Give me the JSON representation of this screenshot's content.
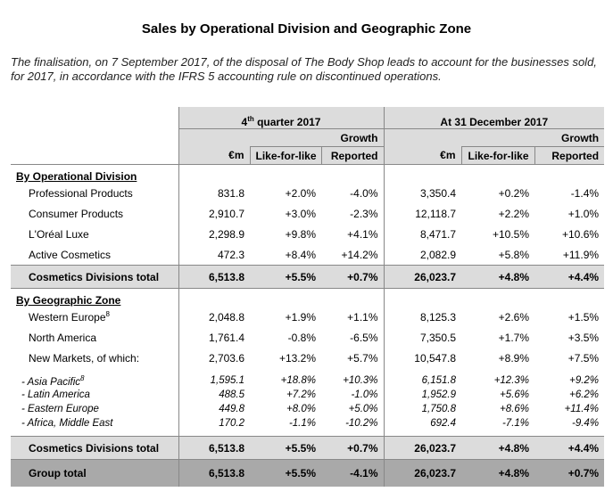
{
  "title": "Sales by Operational Division and Geographic Zone",
  "intro": "The finalisation, on 7 September 2017, of the disposal of The Body Shop leads to account for the businesses sold, for 2017, in accordance with the IFRS 5 accounting rule on discontinued operations.",
  "header": {
    "q4": "4th quarter 2017",
    "q4_base": "4",
    "q4_sup": "th",
    "q4_rest": " quarter 2017",
    "fy": "At 31 December 2017",
    "growth": "Growth",
    "em": "€m",
    "lfl": "Like-for-like",
    "reported": "Reported"
  },
  "divisions": {
    "heading": "By Operational Division",
    "rows": [
      {
        "label": "Professional Products",
        "q_em": "831.8",
        "q_lfl": "+2.0%",
        "q_rep": "-4.0%",
        "y_em": "3,350.4",
        "y_lfl": "+0.2%",
        "y_rep": "-1.4%"
      },
      {
        "label": "Consumer Products",
        "q_em": "2,910.7",
        "q_lfl": "+3.0%",
        "q_rep": "-2.3%",
        "y_em": "12,118.7",
        "y_lfl": "+2.2%",
        "y_rep": "+1.0%"
      },
      {
        "label": "L'Oréal Luxe",
        "q_em": "2,298.9",
        "q_lfl": "+9.8%",
        "q_rep": "+4.1%",
        "y_em": "8,471.7",
        "y_lfl": "+10.5%",
        "y_rep": "+10.6%"
      },
      {
        "label": "Active Cosmetics",
        "q_em": "472.3",
        "q_lfl": "+8.4%",
        "q_rep": "+14.2%",
        "y_em": "2,082.9",
        "y_lfl": "+5.8%",
        "y_rep": "+11.9%"
      }
    ],
    "total": {
      "label": "Cosmetics Divisions total",
      "q_em": "6,513.8",
      "q_lfl": "+5.5%",
      "q_rep": "+0.7%",
      "y_em": "26,023.7",
      "y_lfl": "+4.8%",
      "y_rep": "+4.4%"
    }
  },
  "zones": {
    "heading": "By Geographic Zone",
    "rows": [
      {
        "label": "Western Europe",
        "sup": "8",
        "q_em": "2,048.8",
        "q_lfl": "+1.9%",
        "q_rep": "+1.1%",
        "y_em": "8,125.3",
        "y_lfl": "+2.6%",
        "y_rep": "+1.5%"
      },
      {
        "label": "North America",
        "sup": "",
        "q_em": "1,761.4",
        "q_lfl": "-0.8%",
        "q_rep": "-6.5%",
        "y_em": "7,350.5",
        "y_lfl": "+1.7%",
        "y_rep": "+3.5%"
      },
      {
        "label": "New Markets, of which:",
        "sup": "",
        "q_em": "2,703.6",
        "q_lfl": "+13.2%",
        "q_rep": "+5.7%",
        "y_em": "10,547.8",
        "y_lfl": "+8.9%",
        "y_rep": "+7.5%"
      }
    ],
    "subrows": [
      {
        "label": "Asia Pacific",
        "sup": "8",
        "q_em": "1,595.1",
        "q_lfl": "+18.8%",
        "q_rep": "+10.3%",
        "y_em": "6,151.8",
        "y_lfl": "+12.3%",
        "y_rep": "+9.2%"
      },
      {
        "label": "Latin America",
        "sup": "",
        "q_em": "488.5",
        "q_lfl": "+7.2%",
        "q_rep": "-1.0%",
        "y_em": "1,952.9",
        "y_lfl": "+5.6%",
        "y_rep": "+6.2%"
      },
      {
        "label": "Eastern Europe",
        "sup": "",
        "q_em": "449.8",
        "q_lfl": "+8.0%",
        "q_rep": "+5.0%",
        "y_em": "1,750.8",
        "y_lfl": "+8.6%",
        "y_rep": "+11.4%"
      },
      {
        "label": "Africa, Middle East",
        "sup": "",
        "q_em": "170.2",
        "q_lfl": "-1.1%",
        "q_rep": "-10.2%",
        "y_em": "692.4",
        "y_lfl": "-7.1%",
        "y_rep": "-9.4%"
      }
    ],
    "total": {
      "label": "Cosmetics Divisions total",
      "q_em": "6,513.8",
      "q_lfl": "+5.5%",
      "q_rep": "+0.7%",
      "y_em": "26,023.7",
      "y_lfl": "+4.8%",
      "y_rep": "+4.4%"
    }
  },
  "group_total": {
    "label": "Group total",
    "q_em": "6,513.8",
    "q_lfl": "+5.5%",
    "q_rep": "-4.1%",
    "y_em": "26,023.7",
    "y_lfl": "+4.8%",
    "y_rep": "+0.7%"
  },
  "colors": {
    "shade": "#dcdcdc",
    "group_shade": "#a9a9a9"
  }
}
